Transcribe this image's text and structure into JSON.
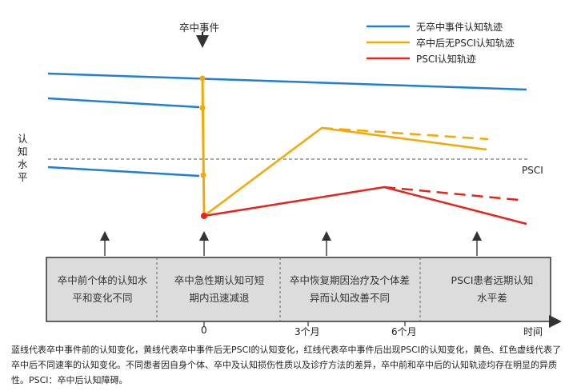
{
  "event_label": "卒中事件",
  "y_axis_label": "认知水平",
  "threshold_label": "PSCI",
  "legend": [
    {
      "label": "无卒中事件认知轨迹",
      "color": "#1f7fd6"
    },
    {
      "label": "卒中后无PSCI认知轨迹",
      "color": "#f5a800"
    },
    {
      "label": "PSCI认知轨迹",
      "color": "#e8231c"
    }
  ],
  "stages": [
    "卒中前个体的认知水平和变化不同",
    "卒中急性期认知可短期内迅速减退",
    "卒中恢复期因治疗及个体差异而认知改善不同",
    "PSCI患者远期认知水平差"
  ],
  "x_ticks": [
    "0",
    "3个月",
    "6个月"
  ],
  "x_axis_label": "时间",
  "caption": "蓝线代表卒中事件前的认知变化，黄线代表卒中事件后无PSCI的认知变化，红线代表卒中事件后出现PSCI的认知变化，黄色、红色虚线代表了卒中后不同速率的认知变化。不同患者因自身个体、卒中及认知损伤性质以及诊疗方法的差异，卒中前和卒中后的认知轨迹均存在明显的异质性。PSCI：卒中后认知障碍。"
}
